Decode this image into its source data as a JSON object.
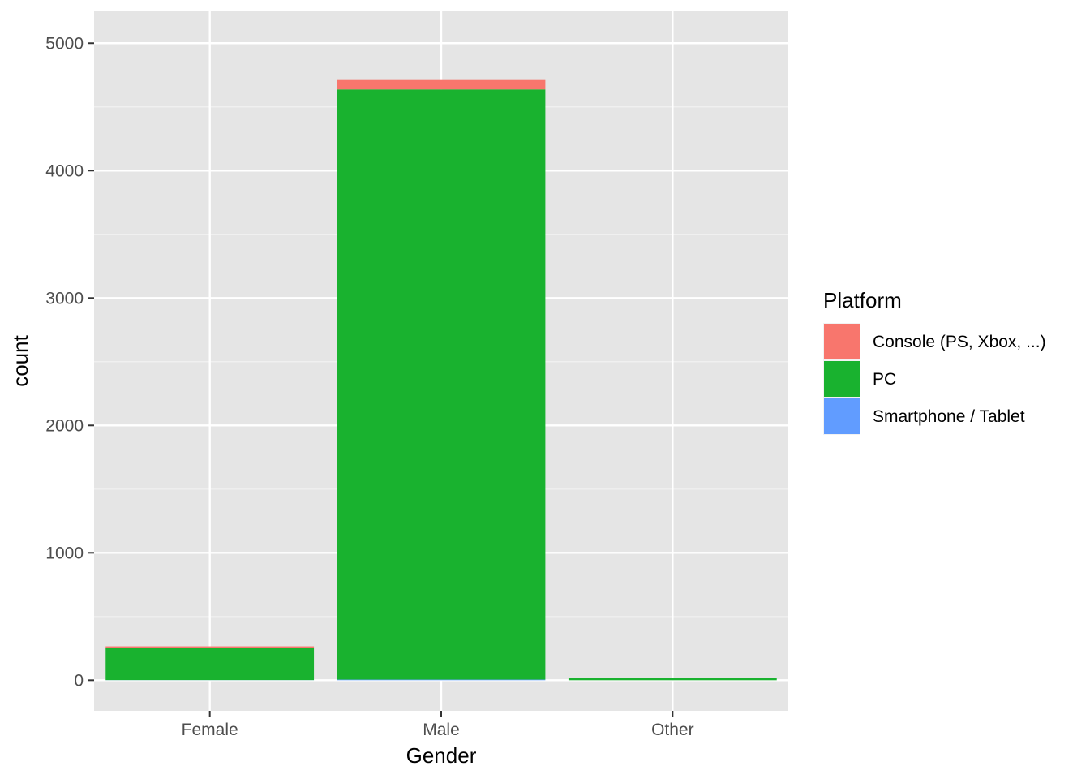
{
  "chart_data": {
    "type": "bar",
    "stacked": true,
    "categories": [
      "Female",
      "Male",
      "Other"
    ],
    "series": [
      {
        "name": "Console (PS, Xbox, ...)",
        "color": "#F8766D",
        "values": [
          10,
          80,
          1
        ]
      },
      {
        "name": "PC",
        "color": "#19B22F",
        "values": [
          255,
          4632,
          20
        ]
      },
      {
        "name": "Smartphone / Tablet",
        "color": "#619CFF",
        "values": [
          1,
          5,
          0
        ]
      }
    ],
    "xlabel": "Gender",
    "ylabel": "count",
    "ylim": [
      -240,
      5250
    ],
    "yticks": [
      0,
      1000,
      2000,
      3000,
      4000,
      5000
    ],
    "ytick_labels": [
      "0",
      "1000",
      "2000",
      "3000",
      "4000",
      "5000"
    ],
    "grid": true,
    "panel_background": "#E5E5E5",
    "legend": {
      "title": "Platform",
      "position": "right"
    }
  }
}
